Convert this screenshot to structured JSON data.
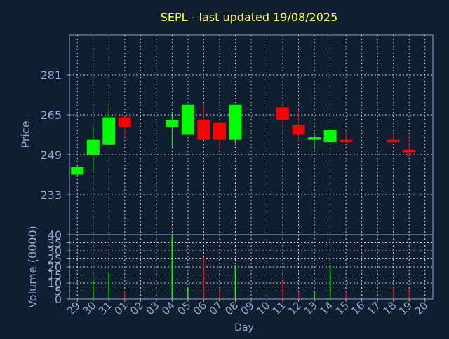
{
  "title": "SEPL - last updated 19/08/2025",
  "colors": {
    "background": "#0f1e30",
    "title": "#ffff33",
    "axis_text": "#8fa8cc",
    "frame": "#8fa8cc",
    "grid": "#c8d0da",
    "up": "#00ff00",
    "down": "#ff0000"
  },
  "chart_data": [
    {
      "type": "candlestick",
      "ylabel": "Price",
      "yticks": [
        233,
        249,
        265,
        281
      ],
      "ylim": [
        217,
        297
      ],
      "grid": true,
      "candles": [
        {
          "day": "29",
          "open": 241,
          "close": 244,
          "high": 245,
          "low": 241
        },
        {
          "day": "30",
          "open": 249,
          "close": 255,
          "high": 260,
          "low": 242
        },
        {
          "day": "31",
          "open": 253,
          "close": 264,
          "high": 268,
          "low": 253
        },
        {
          "day": "01",
          "open": 264,
          "close": 260,
          "high": 264,
          "low": 256
        },
        {
          "day": "04",
          "open": 260,
          "close": 263,
          "high": 266,
          "low": 252
        },
        {
          "day": "05",
          "open": 257,
          "close": 269,
          "high": 269,
          "low": 257
        },
        {
          "day": "06",
          "open": 263,
          "close": 255,
          "high": 269,
          "low": 255
        },
        {
          "day": "07",
          "open": 262,
          "close": 255,
          "high": 262,
          "low": 251
        },
        {
          "day": "08",
          "open": 255,
          "close": 269,
          "high": 269,
          "low": 253
        },
        {
          "day": "11",
          "open": 268,
          "close": 263,
          "high": 268,
          "low": 261
        },
        {
          "day": "12",
          "open": 261,
          "close": 257,
          "high": 267,
          "low": 254
        },
        {
          "day": "13",
          "open": 255,
          "close": 256,
          "high": 257,
          "low": 251
        },
        {
          "day": "14",
          "open": 254,
          "close": 259,
          "high": 259,
          "low": 253
        },
        {
          "day": "15",
          "open": 255,
          "close": 254,
          "high": 258,
          "low": 254
        },
        {
          "day": "18",
          "open": 255,
          "close": 254,
          "high": 258,
          "low": 254
        },
        {
          "day": "19",
          "open": 251,
          "close": 250,
          "high": 257,
          "low": 248
        }
      ]
    },
    {
      "type": "bar",
      "ylabel": "Volume (0000)",
      "xlabel": "Day",
      "yticks": [
        0,
        5,
        10,
        15,
        20,
        25,
        30,
        35,
        40
      ],
      "ylim": [
        0,
        40
      ],
      "grid": true,
      "categories": [
        "29",
        "30",
        "31",
        "01",
        "02",
        "03",
        "04",
        "05",
        "06",
        "07",
        "08",
        "09",
        "10",
        "11",
        "12",
        "13",
        "14",
        "15",
        "16",
        "17",
        "18",
        "19",
        "20"
      ],
      "volumes": [
        {
          "day": "30",
          "value": 12,
          "direction": "up"
        },
        {
          "day": "31",
          "value": 16,
          "direction": "up"
        },
        {
          "day": "01",
          "value": 5,
          "direction": "down"
        },
        {
          "day": "04",
          "value": 39,
          "direction": "up"
        },
        {
          "day": "05",
          "value": 7,
          "direction": "up"
        },
        {
          "day": "06",
          "value": 26,
          "direction": "down"
        },
        {
          "day": "07",
          "value": 6,
          "direction": "down"
        },
        {
          "day": "08",
          "value": 21,
          "direction": "up"
        },
        {
          "day": "11",
          "value": 11,
          "direction": "down"
        },
        {
          "day": "12",
          "value": 4,
          "direction": "down"
        },
        {
          "day": "13",
          "value": 5,
          "direction": "up"
        },
        {
          "day": "14",
          "value": 21,
          "direction": "up"
        },
        {
          "day": "15",
          "value": 4,
          "direction": "down"
        },
        {
          "day": "18",
          "value": 7,
          "direction": "down"
        },
        {
          "day": "19",
          "value": 6,
          "direction": "down"
        }
      ]
    }
  ]
}
